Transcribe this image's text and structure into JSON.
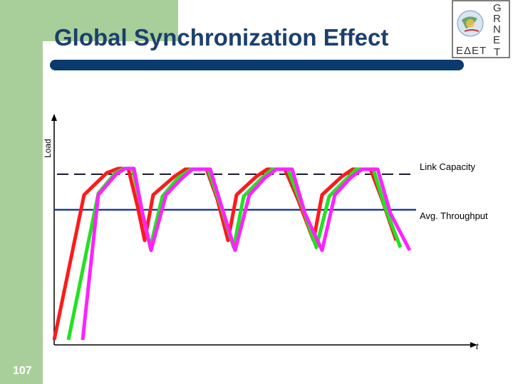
{
  "slide": {
    "title": "Global Synchronization Effect",
    "page_number": "107"
  },
  "logo": {
    "letters": [
      "G",
      "R",
      "N",
      "E",
      "T"
    ],
    "greek": "ΕΔΕΤ",
    "icon": "grnet-globe-logo"
  },
  "diagram": {
    "y_axis_label": "Load",
    "x_axis_label": "t",
    "lines": [
      {
        "name": "Link Capacity",
        "style": "dashed",
        "color": "#1a1a2e"
      },
      {
        "name": "Avg. Throughput",
        "style": "solid",
        "color": "#1f3aa0"
      }
    ],
    "curves": [
      {
        "color": "#ff1a1a"
      },
      {
        "color": "#22e222"
      },
      {
        "color": "#ff22ff"
      }
    ]
  },
  "colors": {
    "accent_bar": "#0a3a6e",
    "side_band": "#a8cf9a",
    "title": "#1c3f6e"
  }
}
